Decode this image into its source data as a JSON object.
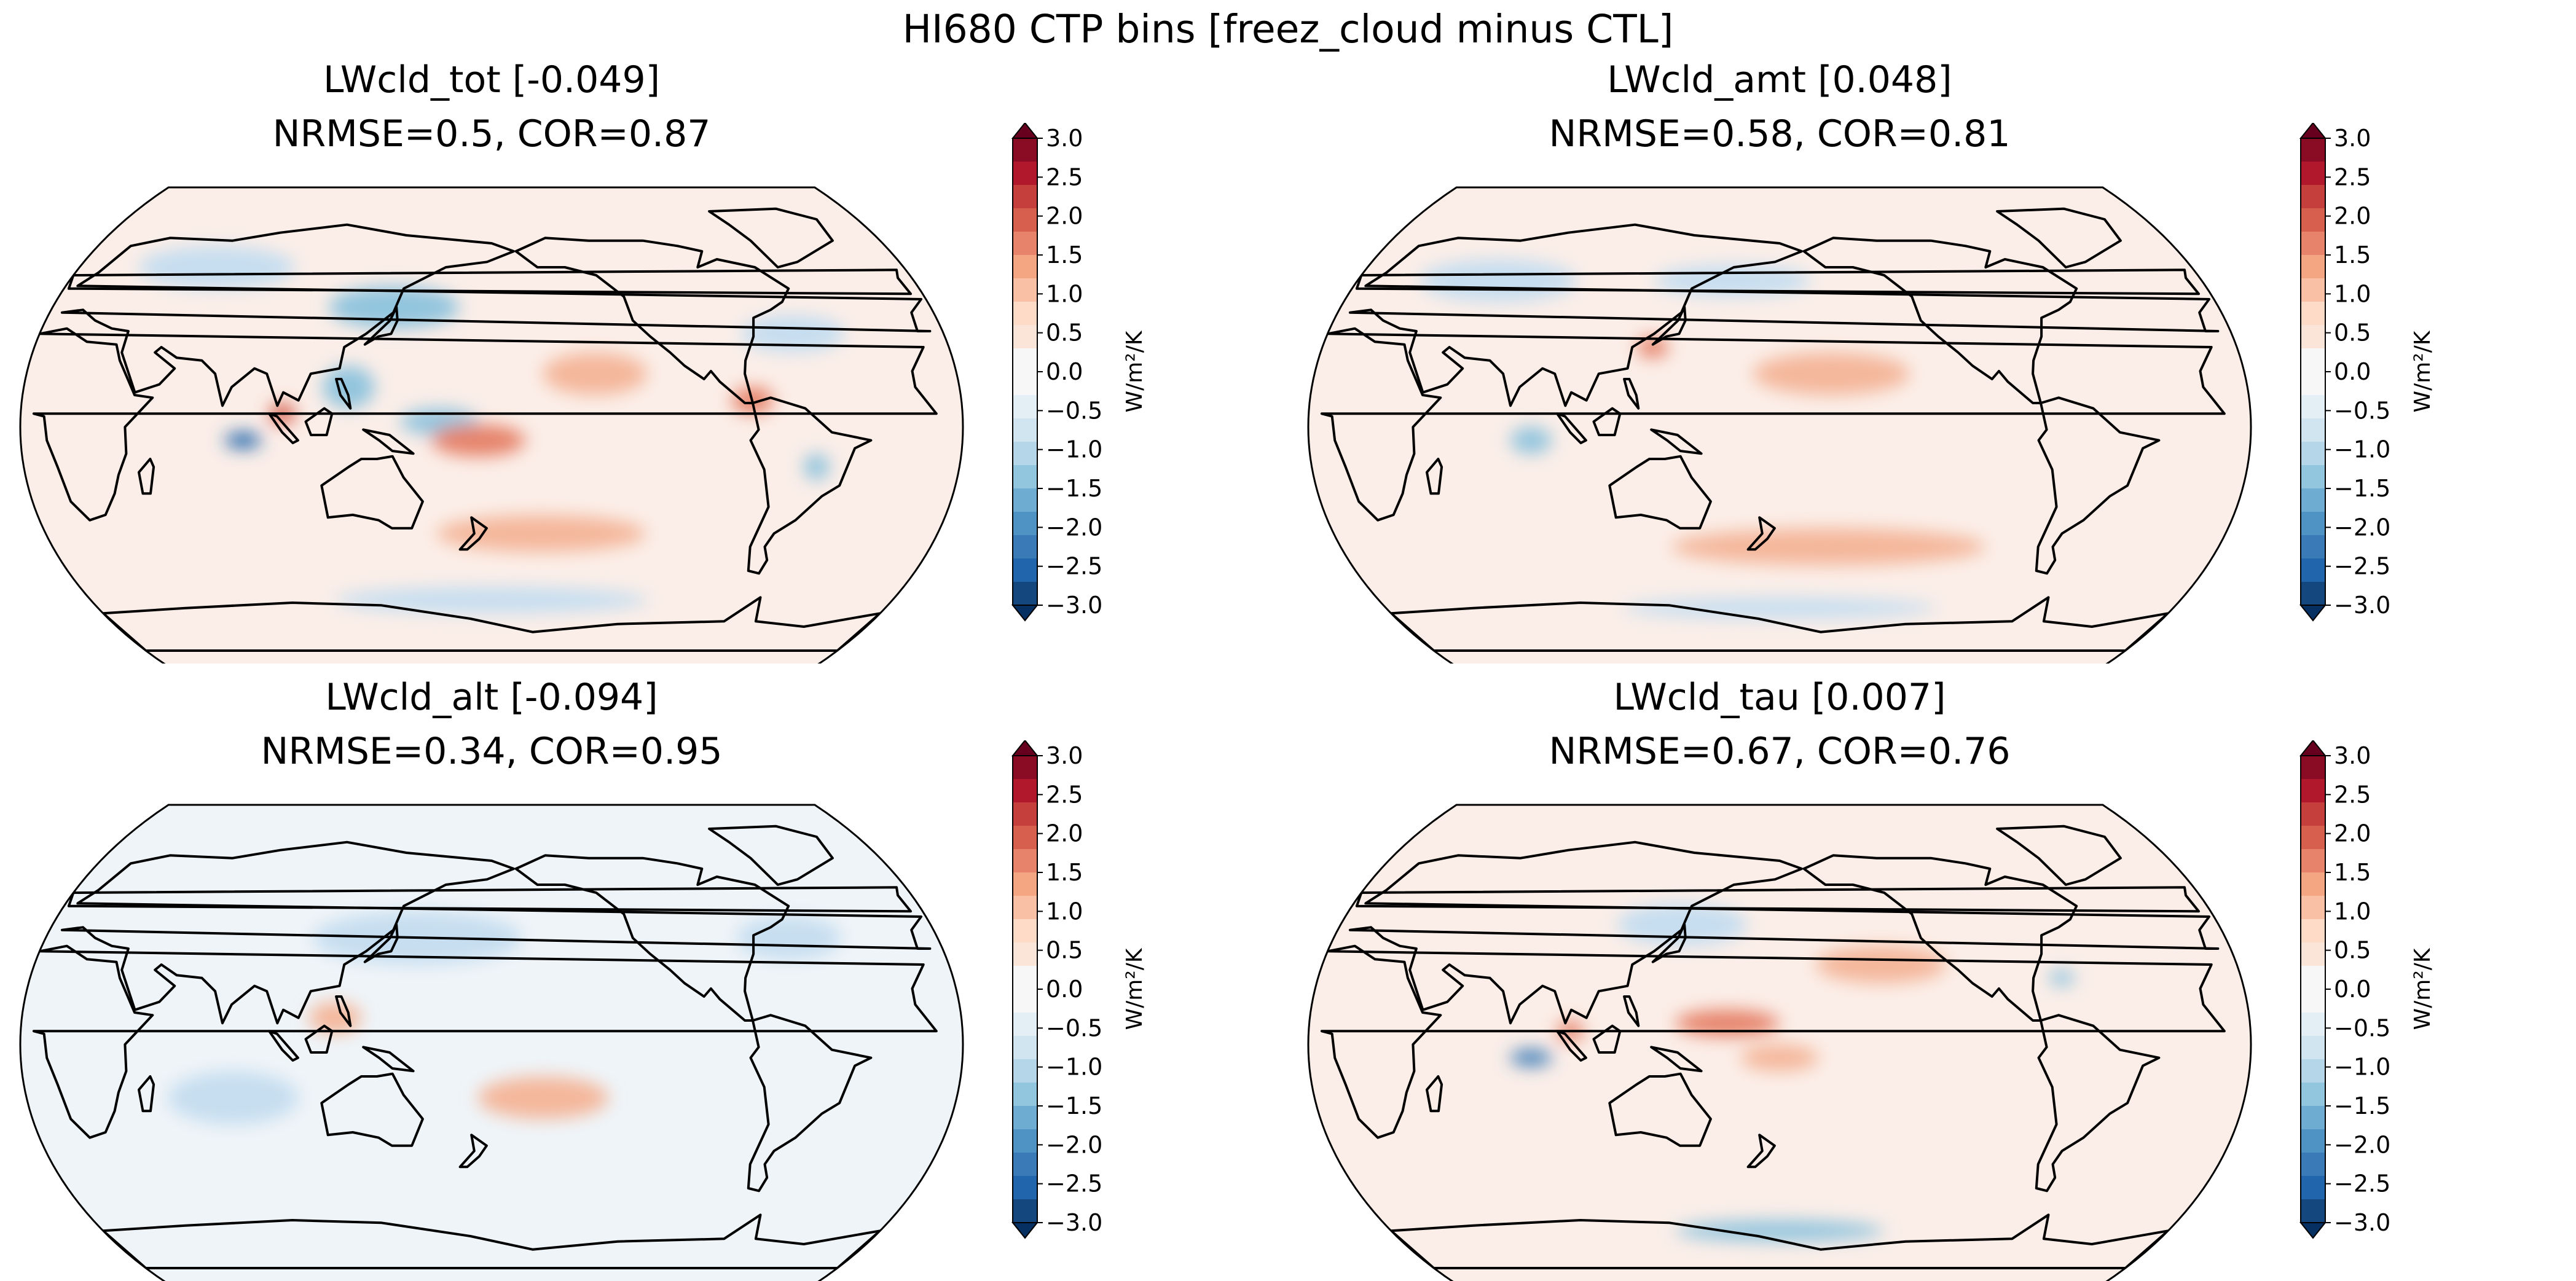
{
  "figure": {
    "suptitle": "HI680 CTP bins [freez_cloud minus CTL]"
  },
  "colorbar": {
    "label": "W/m²/K",
    "colormap": "RdBu_r",
    "extend": "both",
    "ticks": [
      "3.0",
      "2.5",
      "2.0",
      "1.5",
      "1.0",
      "0.5",
      "0.0",
      "−0.5",
      "−1.0",
      "−1.5",
      "−2.0",
      "−2.5",
      "−3.0"
    ],
    "colors": [
      "#053061",
      "#15477f",
      "#2166ac",
      "#3a7bb7",
      "#4f93c4",
      "#6eacd1",
      "#92c5de",
      "#b4d6e8",
      "#d1e5f0",
      "#e3eef5",
      "#f7f7f7",
      "#f7f7f7",
      "#fbe5d8",
      "#fddbc7",
      "#f9c0a6",
      "#f4a582",
      "#e6836a",
      "#d6604d",
      "#c5403d",
      "#b2182b",
      "#8a0b24",
      "#67001f"
    ]
  },
  "panels": [
    {
      "title": "LWcld_tot [-0.049]",
      "subtitle": "NRMSE=0.5, COR=0.87",
      "background": "#fbeee8",
      "anomalies": [
        {
          "lon": 85,
          "lat": -5,
          "value": -2.5,
          "rx": 7,
          "ry": 3
        },
        {
          "lon": 100,
          "lat": 5,
          "value": 1.5,
          "rx": 5,
          "ry": 4
        },
        {
          "lon": 125,
          "lat": 15,
          "value": -1.0,
          "rx": 10,
          "ry": 8
        },
        {
          "lon": 160,
          "lat": 2,
          "value": -1.0,
          "rx": 15,
          "ry": 5
        },
        {
          "lon": 175,
          "lat": -5,
          "value": 1.0,
          "rx": 18,
          "ry": 6
        },
        {
          "lon": 140,
          "lat": 45,
          "value": -1.0,
          "rx": 25,
          "ry": 8
        },
        {
          "lon": 220,
          "lat": 20,
          "value": 0.5,
          "rx": 20,
          "ry": 8
        },
        {
          "lon": 280,
          "lat": 10,
          "value": 1.0,
          "rx": 8,
          "ry": 5
        },
        {
          "lon": 305,
          "lat": -15,
          "value": -1.0,
          "rx": 5,
          "ry": 5
        },
        {
          "lon": 300,
          "lat": 35,
          "value": -0.5,
          "rx": 20,
          "ry": 7
        },
        {
          "lon": 60,
          "lat": 60,
          "value": -0.5,
          "rx": 30,
          "ry": 8
        },
        {
          "lon": 180,
          "lat": -65,
          "value": -0.5,
          "rx": 60,
          "ry": 5
        },
        {
          "lon": 200,
          "lat": -40,
          "value": 0.5,
          "rx": 40,
          "ry": 7
        }
      ]
    },
    {
      "title": "LWcld_amt [0.048]",
      "subtitle": "NRMSE=0.58, COR=0.81",
      "background": "#fbeee8",
      "anomalies": [
        {
          "lon": 85,
          "lat": -5,
          "value": -1.0,
          "rx": 8,
          "ry": 5
        },
        {
          "lon": 130,
          "lat": 30,
          "value": 1.0,
          "rx": 6,
          "ry": 4
        },
        {
          "lon": 200,
          "lat": 20,
          "value": 0.5,
          "rx": 30,
          "ry": 8
        },
        {
          "lon": 200,
          "lat": -45,
          "value": 0.5,
          "rx": 60,
          "ry": 7
        },
        {
          "lon": 160,
          "lat": 55,
          "value": -0.5,
          "rx": 30,
          "ry": 6
        },
        {
          "lon": 60,
          "lat": 55,
          "value": -0.5,
          "rx": 30,
          "ry": 8
        },
        {
          "lon": 180,
          "lat": -68,
          "value": -0.5,
          "rx": 60,
          "ry": 4
        }
      ]
    },
    {
      "title": "LWcld_alt [-0.094]",
      "subtitle": "NRMSE=0.34, COR=0.95",
      "background": "#eff4f8",
      "anomalies": [
        {
          "lon": 150,
          "lat": 40,
          "value": -0.5,
          "rx": 40,
          "ry": 10
        },
        {
          "lon": 120,
          "lat": 10,
          "value": 0.5,
          "rx": 10,
          "ry": 6
        },
        {
          "lon": 200,
          "lat": -20,
          "value": 0.5,
          "rx": 25,
          "ry": 8
        },
        {
          "lon": 300,
          "lat": 40,
          "value": -0.5,
          "rx": 20,
          "ry": 8
        },
        {
          "lon": 80,
          "lat": -20,
          "value": -0.5,
          "rx": 25,
          "ry": 10
        }
      ]
    },
    {
      "title": "LWcld_tau [0.007]",
      "subtitle": "NRMSE=0.67, COR=0.76",
      "background": "#fbeee8",
      "anomalies": [
        {
          "lon": 85,
          "lat": -5,
          "value": -2.0,
          "rx": 8,
          "ry": 3
        },
        {
          "lon": 100,
          "lat": 5,
          "value": 1.0,
          "rx": 5,
          "ry": 4
        },
        {
          "lon": 160,
          "lat": 8,
          "value": 1.0,
          "rx": 20,
          "ry": 5
        },
        {
          "lon": 180,
          "lat": -5,
          "value": 0.5,
          "rx": 15,
          "ry": 5
        },
        {
          "lon": 140,
          "lat": 45,
          "value": -0.5,
          "rx": 25,
          "ry": 8
        },
        {
          "lon": 290,
          "lat": 25,
          "value": -1.0,
          "rx": 5,
          "ry": 3
        },
        {
          "lon": 180,
          "lat": -70,
          "value": -1.0,
          "rx": 40,
          "ry": 4
        },
        {
          "lon": 220,
          "lat": 30,
          "value": 0.5,
          "rx": 25,
          "ry": 7
        }
      ]
    }
  ]
}
